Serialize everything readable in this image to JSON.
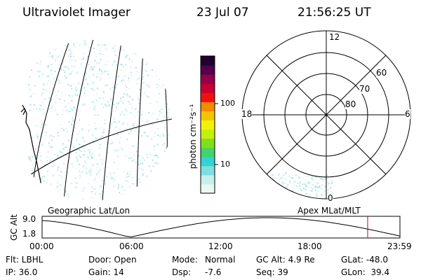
{
  "header": {
    "title": "Ultraviolet Imager",
    "date": "23 Jul 07",
    "time": "21:56:25 UT"
  },
  "colorbar": {
    "label": "photon cm⁻²s⁻¹",
    "ticks": [
      "100",
      "10"
    ],
    "colors": [
      "#e9f7f7",
      "#c8eeee",
      "#7fdede",
      "#33d3d3",
      "#44d36c",
      "#7fe01a",
      "#c6ef10",
      "#f2f208",
      "#f3c400",
      "#f58a00",
      "#f01010",
      "#c70032",
      "#96004a",
      "#55004a",
      "#200030"
    ]
  },
  "polar": {
    "clock_labels": {
      "top": "12",
      "left": "18",
      "right": "6",
      "bottom": "0"
    },
    "lat_labels": [
      "60",
      "70",
      "80"
    ]
  },
  "timeline": {
    "left_title": "Geographic Lat/Lon",
    "right_title": "Apex MLat/MLT",
    "ylabel": "GC Alt",
    "ytick_top": "9.0",
    "ytick_bottom": "1.8",
    "xticks": [
      "00:00",
      "06:00",
      "12:00",
      "18:00",
      "23:59"
    ],
    "marker_color": "#c00000"
  },
  "info": {
    "row1": {
      "flt": "Flt: LBHL",
      "door": "Door: Open",
      "mode_label": "Mode:",
      "mode_value": "Normal",
      "gcalt": "GC Alt: 4.9 Re",
      "glat": "GLat: -48.0"
    },
    "row2": {
      "ip": "IP: 36.0",
      "gain": "Gain: 14",
      "dsp_label": "Dsp:",
      "dsp_value": "-7.6",
      "seq": "Seq: 39",
      "glon": "GLon:  39.4"
    }
  }
}
